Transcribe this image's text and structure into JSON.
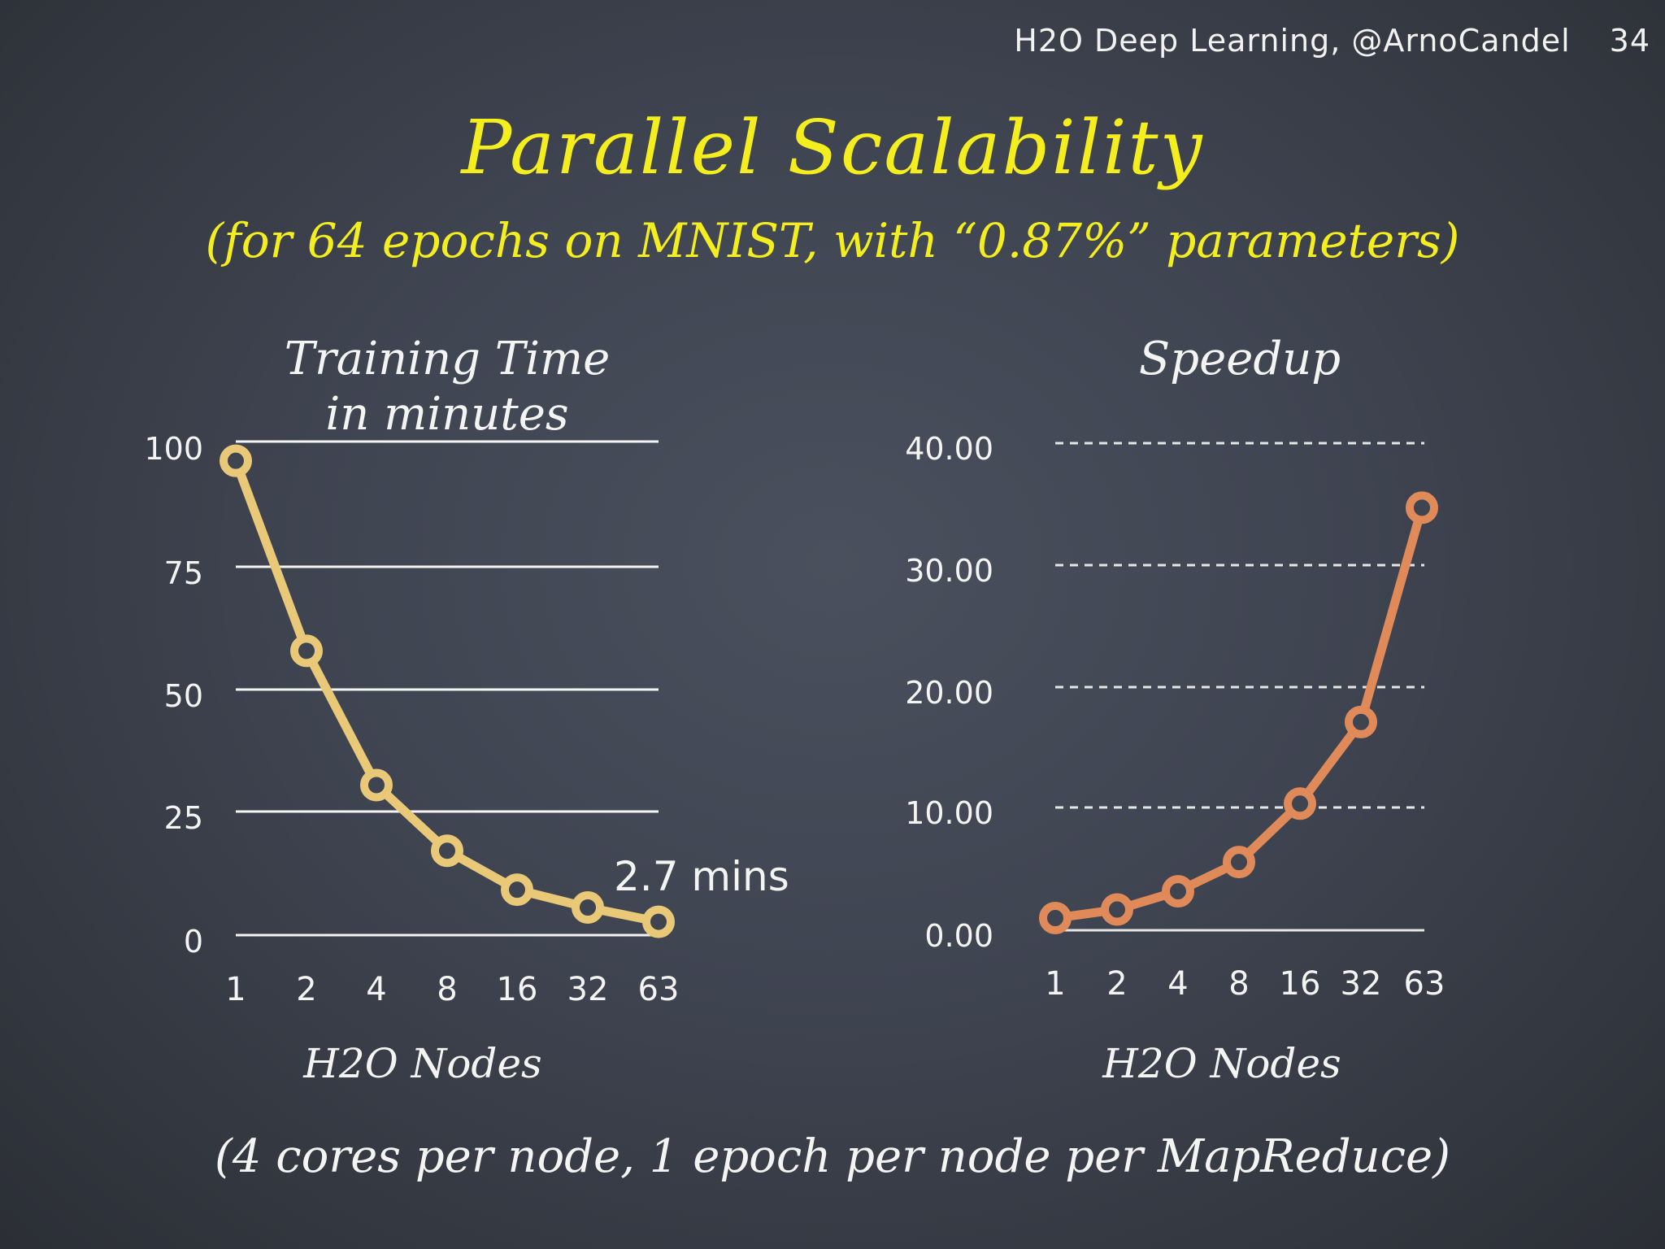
{
  "header": {
    "attribution": "H2O Deep Learning, @ArnoCandel",
    "slide_number": "34"
  },
  "title": "Parallel Scalability",
  "subtitle": "(for 64 epochs on MNIST, with “0.87%” parameters)",
  "footnote": "(4 cores per node, 1 epoch per node per MapReduce)",
  "colors": {
    "background": "#3f4451",
    "title_text": "#f4ee1e",
    "chalk_text": "#f4f4f2",
    "training_time_line": "#e9c877",
    "speedup_line": "#e08a5a"
  },
  "charts": {
    "left": {
      "title_line1": "Training Time",
      "title_line2": "in minutes",
      "xlabel": "H2O Nodes",
      "y_ticks": [
        "100",
        "75",
        "50",
        "25",
        "0"
      ],
      "x_ticks": [
        "1",
        "2",
        "4",
        "8",
        "16",
        "32",
        "63"
      ],
      "annotation": "2.7 mins"
    },
    "right": {
      "title": "Speedup",
      "xlabel": "H2O Nodes",
      "y_ticks": [
        "40.00",
        "30.00",
        "20.00",
        "10.00",
        "0.00"
      ],
      "x_ticks": [
        "1",
        "2",
        "4",
        "8",
        "16",
        "32",
        "63"
      ]
    }
  },
  "chart_data": [
    {
      "type": "line",
      "title": "Training Time in minutes",
      "xlabel": "H2O Nodes",
      "ylabel": "minutes",
      "categories": [
        "1",
        "2",
        "4",
        "8",
        "16",
        "32",
        "63"
      ],
      "values": [
        96.1,
        57.6,
        30.4,
        17.1,
        9.2,
        5.6,
        2.7
      ],
      "ylim": [
        0,
        100
      ],
      "y_ticks": [
        0,
        25,
        50,
        75,
        100
      ],
      "grid": "solid horizontal",
      "annotations": [
        {
          "text": "2.7 mins",
          "x": "63",
          "y": 2.7
        }
      ],
      "color": "#e9c877",
      "marker": "hollow circle"
    },
    {
      "type": "line",
      "title": "Speedup",
      "xlabel": "H2O Nodes",
      "ylabel": "",
      "categories": [
        "1",
        "2",
        "4",
        "8",
        "16",
        "32",
        "63"
      ],
      "values": [
        1.0,
        1.7,
        3.2,
        5.6,
        10.4,
        17.1,
        34.7
      ],
      "ylim": [
        0,
        40
      ],
      "y_ticks": [
        0,
        10,
        20,
        30,
        40
      ],
      "grid": "dashed horizontal",
      "color": "#e08a5a",
      "marker": "hollow circle"
    }
  ]
}
